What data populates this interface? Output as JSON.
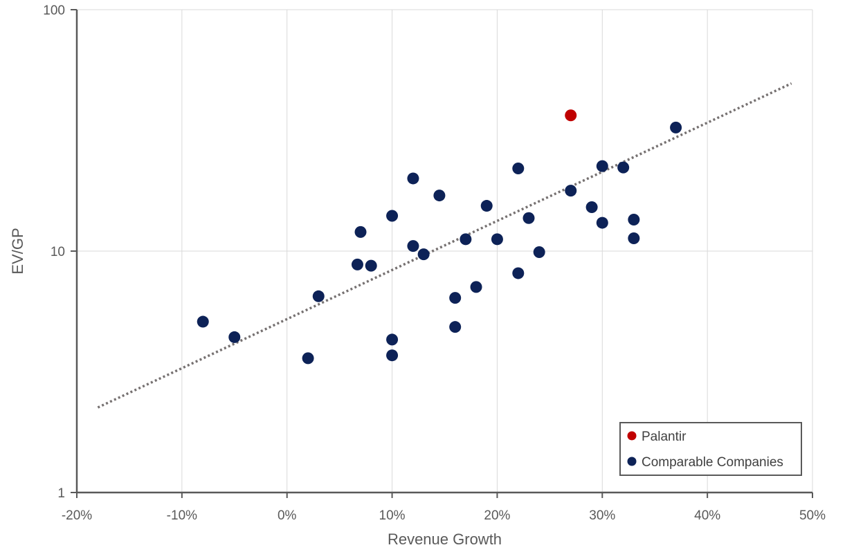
{
  "chart_data": {
    "type": "scatter",
    "title": "",
    "xlabel": "Revenue Growth",
    "ylabel": "EV/GP",
    "x_scale": "linear",
    "y_scale": "log",
    "xlim": [
      -0.2,
      0.5
    ],
    "ylim": [
      1,
      100
    ],
    "x_ticks": [
      -0.2,
      -0.1,
      0,
      0.1,
      0.2,
      0.3,
      0.4,
      0.5
    ],
    "x_tick_labels": [
      "-20%",
      "-10%",
      "0%",
      "10%",
      "20%",
      "30%",
      "40%",
      "50%"
    ],
    "y_ticks": [
      1,
      10,
      100
    ],
    "y_tick_labels": [
      "1",
      "10",
      "100"
    ],
    "grid": true,
    "legend_position": "bottom-right",
    "trendline": {
      "style": "dotted",
      "color": "#767171",
      "kind": "exponential",
      "points": [
        [
          -0.18,
          2.25
        ],
        [
          0.48,
          49.5
        ]
      ]
    },
    "series": [
      {
        "name": "Palantir",
        "color": "#c00000",
        "points": [
          [
            0.27,
            36.5
          ]
        ]
      },
      {
        "name": "Comparable Companies",
        "color": "#0d2257",
        "points": [
          [
            -0.08,
            5.1
          ],
          [
            -0.05,
            4.4
          ],
          [
            0.02,
            3.6
          ],
          [
            0.03,
            6.5
          ],
          [
            0.067,
            8.8
          ],
          [
            0.07,
            12.0
          ],
          [
            0.08,
            8.7
          ],
          [
            0.1,
            14.0
          ],
          [
            0.1,
            4.3
          ],
          [
            0.1,
            3.7
          ],
          [
            0.12,
            20.0
          ],
          [
            0.12,
            10.5
          ],
          [
            0.13,
            9.7
          ],
          [
            0.145,
            17.0
          ],
          [
            0.16,
            6.4
          ],
          [
            0.16,
            4.85
          ],
          [
            0.17,
            11.2
          ],
          [
            0.18,
            7.1
          ],
          [
            0.19,
            15.4
          ],
          [
            0.2,
            11.2
          ],
          [
            0.22,
            22.0
          ],
          [
            0.22,
            8.1
          ],
          [
            0.23,
            13.7
          ],
          [
            0.24,
            9.9
          ],
          [
            0.27,
            17.8
          ],
          [
            0.29,
            15.2
          ],
          [
            0.3,
            22.5
          ],
          [
            0.3,
            13.1
          ],
          [
            0.32,
            22.2
          ],
          [
            0.33,
            13.5
          ],
          [
            0.33,
            11.3
          ],
          [
            0.37,
            32.5
          ]
        ]
      }
    ]
  }
}
